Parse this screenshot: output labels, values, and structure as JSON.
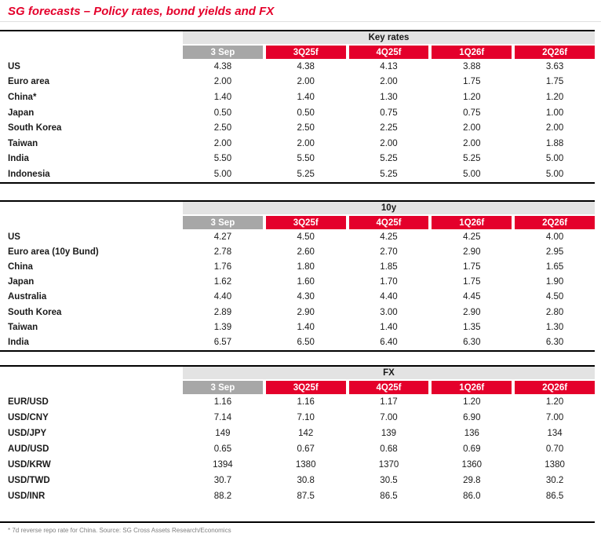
{
  "title": "SG forecasts – Policy rates, bond yields and FX",
  "footnote": "* 7d reverse repo rate for China. Source: SG Cross Assets Research/Economics",
  "colors": {
    "brand_red": "#e4002b",
    "header_gray": "#a7a7a7",
    "band_gray": "#e3e3e3",
    "text": "#1a1a1a",
    "footnote_gray": "#808080",
    "border_black": "#000000",
    "title_rule": "#e0e0e0"
  },
  "column_headers": [
    "3 Sep",
    "3Q25f",
    "4Q25f",
    "1Q26f",
    "2Q26f"
  ],
  "tables": [
    {
      "band_title": "Key rates",
      "rows": [
        {
          "label": "US",
          "values": [
            "4.38",
            "4.38",
            "4.13",
            "3.88",
            "3.63"
          ]
        },
        {
          "label": "Euro area",
          "values": [
            "2.00",
            "2.00",
            "2.00",
            "1.75",
            "1.75"
          ]
        },
        {
          "label": "China*",
          "values": [
            "1.40",
            "1.40",
            "1.30",
            "1.20",
            "1.20"
          ]
        },
        {
          "label": "Japan",
          "values": [
            "0.50",
            "0.50",
            "0.75",
            "0.75",
            "1.00"
          ]
        },
        {
          "label": "South Korea",
          "values": [
            "2.50",
            "2.50",
            "2.25",
            "2.00",
            "2.00"
          ]
        },
        {
          "label": "Taiwan",
          "values": [
            "2.00",
            "2.00",
            "2.00",
            "2.00",
            "1.88"
          ]
        },
        {
          "label": "India",
          "values": [
            "5.50",
            "5.50",
            "5.25",
            "5.25",
            "5.00"
          ]
        },
        {
          "label": "Indonesia",
          "values": [
            "5.00",
            "5.25",
            "5.25",
            "5.00",
            "5.00"
          ]
        }
      ]
    },
    {
      "band_title": "10y",
      "rows": [
        {
          "label": "US",
          "values": [
            "4.27",
            "4.50",
            "4.25",
            "4.25",
            "4.00"
          ]
        },
        {
          "label": "Euro area (10y Bund)",
          "values": [
            "2.78",
            "2.60",
            "2.70",
            "2.90",
            "2.95"
          ]
        },
        {
          "label": "China",
          "values": [
            "1.76",
            "1.80",
            "1.85",
            "1.75",
            "1.65"
          ]
        },
        {
          "label": "Japan",
          "values": [
            "1.62",
            "1.60",
            "1.70",
            "1.75",
            "1.90"
          ]
        },
        {
          "label": "Australia",
          "values": [
            "4.40",
            "4.30",
            "4.40",
            "4.45",
            "4.50"
          ]
        },
        {
          "label": "South Korea",
          "values": [
            "2.89",
            "2.90",
            "3.00",
            "2.90",
            "2.80"
          ]
        },
        {
          "label": "Taiwan",
          "values": [
            "1.39",
            "1.40",
            "1.40",
            "1.35",
            "1.30"
          ]
        },
        {
          "label": "India",
          "values": [
            "6.57",
            "6.50",
            "6.40",
            "6.30",
            "6.30"
          ]
        }
      ]
    },
    {
      "band_title": "FX",
      "rows": [
        {
          "label": "EUR/USD",
          "values": [
            "1.16",
            "1.16",
            "1.17",
            "1.20",
            "1.20"
          ]
        },
        {
          "label": "USD/CNY",
          "values": [
            "7.14",
            "7.10",
            "7.00",
            "6.90",
            "7.00"
          ]
        },
        {
          "label": "USD/JPY",
          "values": [
            "149",
            "142",
            "139",
            "136",
            "134"
          ]
        },
        {
          "label": "AUD/USD",
          "values": [
            "0.65",
            "0.67",
            "0.68",
            "0.69",
            "0.70"
          ]
        },
        {
          "label": "USD/KRW",
          "values": [
            "1394",
            "1380",
            "1370",
            "1360",
            "1380"
          ]
        },
        {
          "label": "USD/TWD",
          "values": [
            "30.7",
            "30.8",
            "30.5",
            "29.8",
            "30.2"
          ]
        },
        {
          "label": "USD/INR",
          "values": [
            "88.2",
            "87.5",
            "86.5",
            "86.0",
            "86.5"
          ]
        }
      ]
    }
  ]
}
